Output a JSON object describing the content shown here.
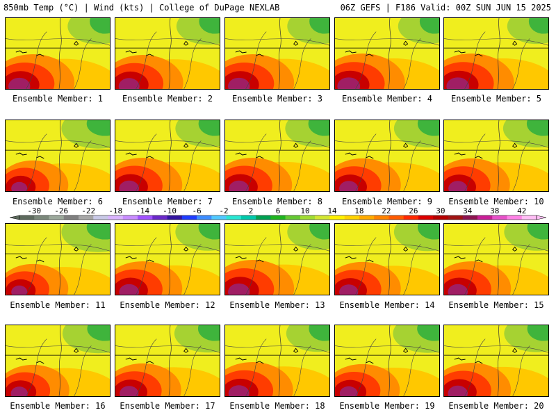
{
  "header": {
    "left_title": "850mb Temp (°C) | Wind (kts) | College of DuPage NEXLAB",
    "right_title": "06Z GEFS | F186 Valid: 00Z SUN JUN 15 2025"
  },
  "members": [
    {
      "label": "Ensemble Member: 1",
      "heat": 0.85
    },
    {
      "label": "Ensemble Member: 2",
      "heat": 0.8
    },
    {
      "label": "Ensemble Member: 3",
      "heat": 0.85
    },
    {
      "label": "Ensemble Member: 4",
      "heat": 0.9
    },
    {
      "label": "Ensemble Member: 5",
      "heat": 0.9
    },
    {
      "label": "Ensemble Member: 6",
      "heat": 0.55
    },
    {
      "label": "Ensemble Member: 7",
      "heat": 0.75
    },
    {
      "label": "Ensemble Member: 8",
      "heat": 0.75
    },
    {
      "label": "Ensemble Member: 9",
      "heat": 0.7
    },
    {
      "label": "Ensemble Member: 10",
      "heat": 0.7
    },
    {
      "label": "Ensemble Member: 11",
      "heat": 0.55
    },
    {
      "label": "Ensemble Member: 12",
      "heat": 0.75
    },
    {
      "label": "Ensemble Member: 13",
      "heat": 0.85
    },
    {
      "label": "Ensemble Member: 14",
      "heat": 0.7
    },
    {
      "label": "Ensemble Member: 15",
      "heat": 0.75
    },
    {
      "label": "Ensemble Member: 16",
      "heat": 0.6
    },
    {
      "label": "Ensemble Member: 17",
      "heat": 0.7
    },
    {
      "label": "Ensemble Member: 18",
      "heat": 0.8
    },
    {
      "label": "Ensemble Member: 19",
      "heat": 0.65
    },
    {
      "label": "Ensemble Member: 20",
      "heat": 0.75
    }
  ],
  "colorbar": {
    "ticks": [
      "-30",
      "-26",
      "-22",
      "-18",
      "-14",
      "-10",
      "-6",
      "-2",
      "2",
      "6",
      "10",
      "14",
      "18",
      "22",
      "26",
      "30",
      "34",
      "38",
      "42"
    ],
    "colors": [
      "#5d6a5d",
      "#7a877a",
      "#9ba89b",
      "#7f7f7f",
      "#a6a6a6",
      "#c8c8e6",
      "#dab4ff",
      "#c88cff",
      "#a050ff",
      "#6a28c8",
      "#3214a0",
      "#1e3cff",
      "#3c8cff",
      "#50c8ff",
      "#28e6d2",
      "#00c8aa",
      "#00a050",
      "#1eb41e",
      "#64c832",
      "#a0dc32",
      "#d2e632",
      "#fff000",
      "#ffd200",
      "#ffaa00",
      "#ff8200",
      "#ff5a00",
      "#ff2800",
      "#dc0000",
      "#b40000",
      "#a01414",
      "#8c1450",
      "#c81e96",
      "#e650c8",
      "#ff82e6",
      "#ffbef5"
    ]
  }
}
